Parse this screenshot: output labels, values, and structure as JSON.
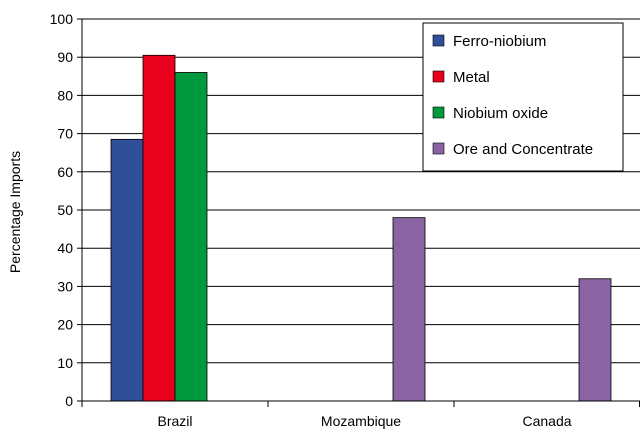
{
  "chart_data": {
    "type": "bar",
    "title": "",
    "xlabel": "",
    "ylabel": "Percentage Imports",
    "categories": [
      "Brazil",
      "Mozambique",
      "Canada"
    ],
    "ylim": [
      0,
      100
    ],
    "yticks": [
      0,
      10,
      20,
      30,
      40,
      50,
      60,
      70,
      80,
      90,
      100
    ],
    "grid": true,
    "legend_position": "top-right",
    "series": [
      {
        "name": "Ferro-niobium",
        "color": "#2F4F98",
        "values": [
          68.5,
          null,
          null
        ]
      },
      {
        "name": "Metal",
        "color": "#E8001C",
        "values": [
          90.5,
          null,
          null
        ]
      },
      {
        "name": "Niobium oxide",
        "color": "#009A3E",
        "values": [
          86,
          null,
          null
        ]
      },
      {
        "name": "Ore and Concentrate",
        "color": "#8A64A2",
        "values": [
          null,
          48,
          32
        ]
      }
    ]
  }
}
